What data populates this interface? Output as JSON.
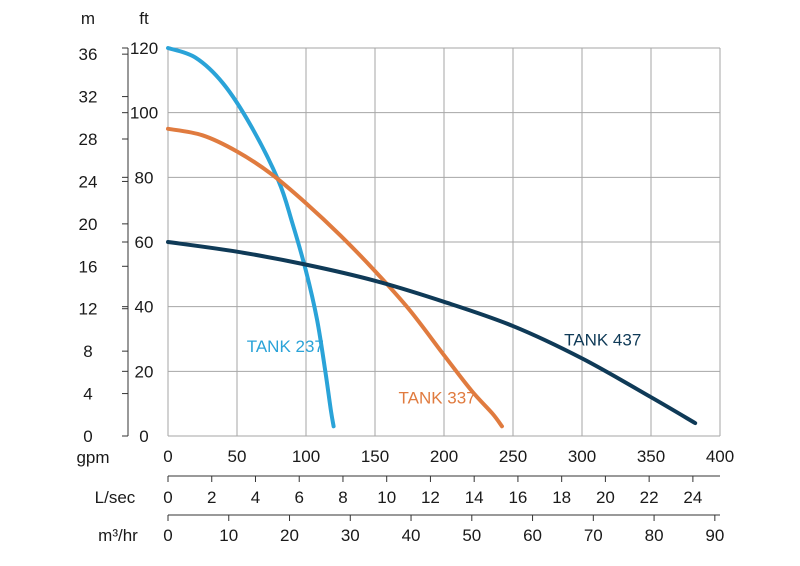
{
  "chart_data": {
    "type": "line",
    "units": {
      "m": "m",
      "ft": "ft",
      "gpm": "gpm",
      "lsec": "L/sec",
      "m3hr": "m³/hr"
    },
    "x_axes": {
      "gpm": {
        "ticks": [
          0,
          50,
          100,
          150,
          200,
          250,
          300,
          350,
          400
        ],
        "range": [
          0,
          400
        ]
      },
      "lsec": {
        "ticks": [
          0,
          2,
          4,
          6,
          8,
          10,
          12,
          14,
          16,
          18,
          20,
          22,
          24
        ],
        "range": [
          0,
          25.24
        ]
      },
      "m3hr": {
        "ticks": [
          0,
          10,
          20,
          30,
          40,
          50,
          60,
          70,
          80,
          90
        ],
        "range": [
          0,
          90.85
        ]
      }
    },
    "y_axes": {
      "ft": {
        "ticks": [
          0,
          20,
          40,
          60,
          80,
          100,
          120
        ],
        "range": [
          0,
          120
        ]
      },
      "m": {
        "ticks": [
          0,
          4,
          8,
          12,
          16,
          20,
          24,
          28,
          32,
          36
        ],
        "range": [
          0,
          36.58
        ]
      }
    },
    "grid": true,
    "series": [
      {
        "name": "TANK 237",
        "color": "#2aa3d8",
        "x": [
          0,
          20,
          40,
          60,
          80,
          90,
          100,
          108,
          114,
          118,
          120
        ],
        "y": [
          120,
          117,
          109,
          96,
          79,
          66,
          51,
          36,
          20,
          8,
          3
        ],
        "label_at": [
          85,
          26
        ]
      },
      {
        "name": "TANK 337",
        "color": "#e07b3f",
        "x": [
          0,
          25,
          50,
          75,
          100,
          125,
          150,
          175,
          200,
          220,
          235,
          242
        ],
        "y": [
          95,
          93,
          88,
          81,
          72,
          62,
          51,
          39,
          25,
          14,
          7,
          3
        ],
        "label_at": [
          195,
          10
        ]
      },
      {
        "name": "TANK 437",
        "color": "#0f3a57",
        "x": [
          0,
          50,
          100,
          150,
          200,
          250,
          300,
          350,
          382
        ],
        "y": [
          60,
          57,
          53,
          48,
          41.5,
          34,
          24,
          12,
          4
        ],
        "label_at": [
          315,
          28
        ]
      }
    ]
  }
}
